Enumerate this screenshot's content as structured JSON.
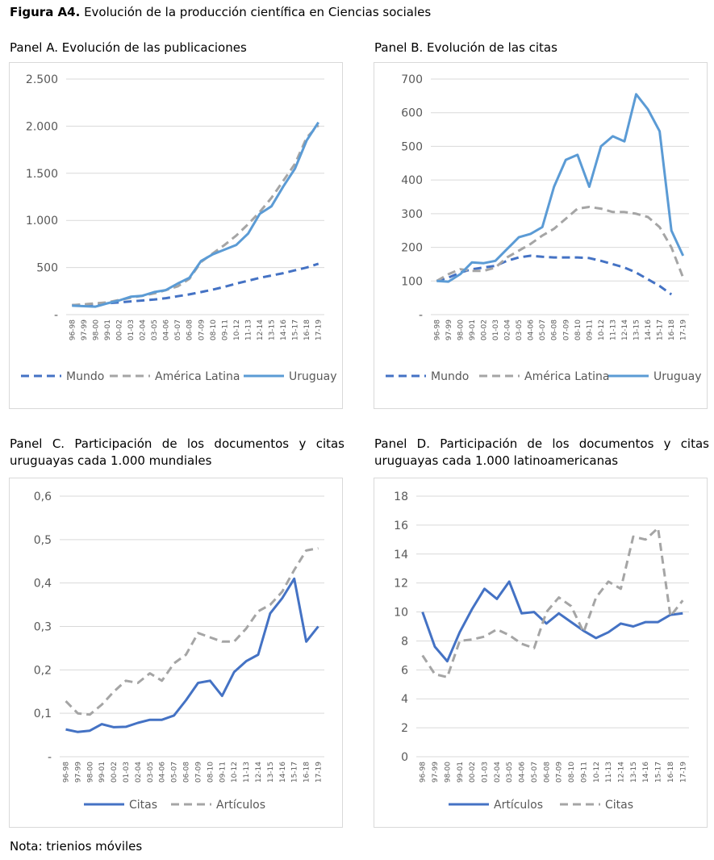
{
  "figure": {
    "label": "Figura A4.",
    "title": "Evolución de la producción científica en Ciencias sociales"
  },
  "note": "Nota: trienios móviles",
  "colors": {
    "solid": "#5b9bd5",
    "dashed_dark": "#4472c4",
    "dashed_grey": "#a5a5a5",
    "grid": "#d9d9d9"
  },
  "chart_data": [
    {
      "id": "A",
      "type": "line",
      "title": "Panel A. Evolución de las publicaciones",
      "categories": [
        "96-98",
        "97-99",
        "98-00",
        "99-01",
        "00-02",
        "01-03",
        "02-04",
        "03-05",
        "04-06",
        "05-07",
        "06-08",
        "07-09",
        "08-10",
        "09-11",
        "10-12",
        "11-13",
        "12-14",
        "13-15",
        "14-16",
        "15-17",
        "16-18",
        "17-19"
      ],
      "ylim": [
        0,
        2500
      ],
      "yticks": [
        "-",
        "500",
        "1.000",
        "1.500",
        "2.000",
        "2.500"
      ],
      "legend_position": "bottom",
      "series": [
        {
          "name": "Mundo",
          "style": "dashed-blue",
          "values": [
            100,
            105,
            110,
            120,
            130,
            140,
            150,
            160,
            175,
            195,
            215,
            240,
            265,
            295,
            330,
            360,
            390,
            415,
            440,
            470,
            500,
            540
          ]
        },
        {
          "name": "América Latina",
          "style": "dashed-grey",
          "values": [
            100,
            110,
            120,
            130,
            155,
            180,
            200,
            225,
            260,
            300,
            380,
            560,
            650,
            740,
            840,
            960,
            1090,
            1240,
            1420,
            1600,
            1880,
            2010
          ]
        },
        {
          "name": "Uruguay",
          "style": "solid-lightblue",
          "values": [
            95,
            90,
            85,
            120,
            150,
            190,
            200,
            240,
            260,
            330,
            390,
            570,
            640,
            690,
            740,
            860,
            1070,
            1150,
            1360,
            1550,
            1850,
            2040
          ]
        }
      ]
    },
    {
      "id": "B",
      "type": "line",
      "title": "Panel B. Evolución de las citas",
      "categories": [
        "96-98",
        "97-99",
        "98-00",
        "99-01",
        "00-02",
        "01-03",
        "02-04",
        "03-05",
        "04-06",
        "05-07",
        "06-08",
        "07-09",
        "08-10",
        "09-11",
        "10-12",
        "11-13",
        "12-14",
        "13-15",
        "14-16",
        "15-17",
        "16-18",
        "17-19"
      ],
      "ylim": [
        0,
        700
      ],
      "yticks": [
        "-",
        "100",
        "200",
        "300",
        "400",
        "500",
        "600",
        "700"
      ],
      "legend_position": "bottom",
      "series": [
        {
          "name": "Mundo",
          "style": "dashed-blue",
          "values": [
            100,
            110,
            125,
            135,
            140,
            145,
            160,
            170,
            175,
            172,
            170,
            170,
            170,
            168,
            160,
            150,
            140,
            125,
            105,
            85,
            60,
            null
          ]
        },
        {
          "name": "América Latina",
          "style": "dashed-grey",
          "values": [
            100,
            120,
            135,
            130,
            130,
            140,
            170,
            190,
            210,
            235,
            255,
            285,
            315,
            320,
            315,
            305,
            305,
            300,
            290,
            260,
            200,
            110
          ]
        },
        {
          "name": "Uruguay",
          "style": "solid-lightblue",
          "values": [
            100,
            98,
            120,
            155,
            153,
            160,
            195,
            230,
            240,
            260,
            380,
            460,
            475,
            380,
            500,
            530,
            515,
            655,
            610,
            545,
            250,
            175
          ]
        }
      ]
    },
    {
      "id": "C",
      "type": "line",
      "title": "Panel C. Participación de los documentos y citas uruguayas cada 1.000 mundiales",
      "categories": [
        "96-98",
        "97-99",
        "98-00",
        "99-01",
        "00-02",
        "01-03",
        "02-04",
        "03-05",
        "04-06",
        "05-07",
        "06-08",
        "07-09",
        "08-10",
        "09-11",
        "10-12",
        "11-13",
        "12-14",
        "13-15",
        "14-16",
        "15-17",
        "16-18",
        "17-19"
      ],
      "ylim": [
        0,
        0.6
      ],
      "yticks": [
        "-",
        "0,1",
        "0,2",
        "0,3",
        "0,4",
        "0,5",
        "0,6"
      ],
      "legend_position": "bottom",
      "series": [
        {
          "name": "Citas",
          "style": "solid-blue",
          "values": [
            0.063,
            0.057,
            0.06,
            0.075,
            0.068,
            0.069,
            0.078,
            0.085,
            0.085,
            0.095,
            0.13,
            0.17,
            0.175,
            0.14,
            0.195,
            0.22,
            0.235,
            0.33,
            0.365,
            0.41,
            0.265,
            0.3
          ]
        },
        {
          "name": "Artículos",
          "style": "dashed-grey",
          "values": [
            0.128,
            0.1,
            0.097,
            0.12,
            0.15,
            0.175,
            0.17,
            0.192,
            0.175,
            0.215,
            0.235,
            0.285,
            0.275,
            0.265,
            0.265,
            0.295,
            0.335,
            0.35,
            0.38,
            0.43,
            0.475,
            0.48
          ]
        }
      ]
    },
    {
      "id": "D",
      "type": "line",
      "title": "Panel D. Participación de los documentos y citas uruguayas cada 1.000 latinoamericanas",
      "categories": [
        "96-98",
        "97-99",
        "98-00",
        "99-01",
        "00-02",
        "01-03",
        "02-04",
        "03-05",
        "04-06",
        "05-07",
        "06-08",
        "07-09",
        "08-10",
        "09-11",
        "10-12",
        "11-13",
        "12-14",
        "13-15",
        "14-16",
        "15-17",
        "16-18",
        "17-19"
      ],
      "ylim": [
        0,
        18
      ],
      "yticks": [
        "0",
        "2",
        "4",
        "6",
        "8",
        "10",
        "12",
        "14",
        "16",
        "18"
      ],
      "legend_position": "bottom",
      "series": [
        {
          "name": "Artículos",
          "style": "solid-blue",
          "values": [
            10.0,
            7.6,
            6.6,
            8.6,
            10.2,
            11.6,
            10.9,
            12.1,
            9.9,
            10.0,
            9.2,
            9.9,
            9.3,
            8.7,
            8.2,
            8.6,
            9.2,
            9.0,
            9.3,
            9.3,
            9.8,
            9.9
          ]
        },
        {
          "name": "Citas",
          "style": "dashed-grey",
          "values": [
            7.0,
            5.7,
            5.5,
            8.0,
            8.1,
            8.3,
            8.8,
            8.4,
            7.8,
            7.5,
            10.0,
            11.0,
            10.4,
            8.6,
            11.0,
            12.1,
            11.6,
            15.2,
            15.0,
            15.8,
            9.7,
            10.8
          ]
        }
      ]
    }
  ]
}
